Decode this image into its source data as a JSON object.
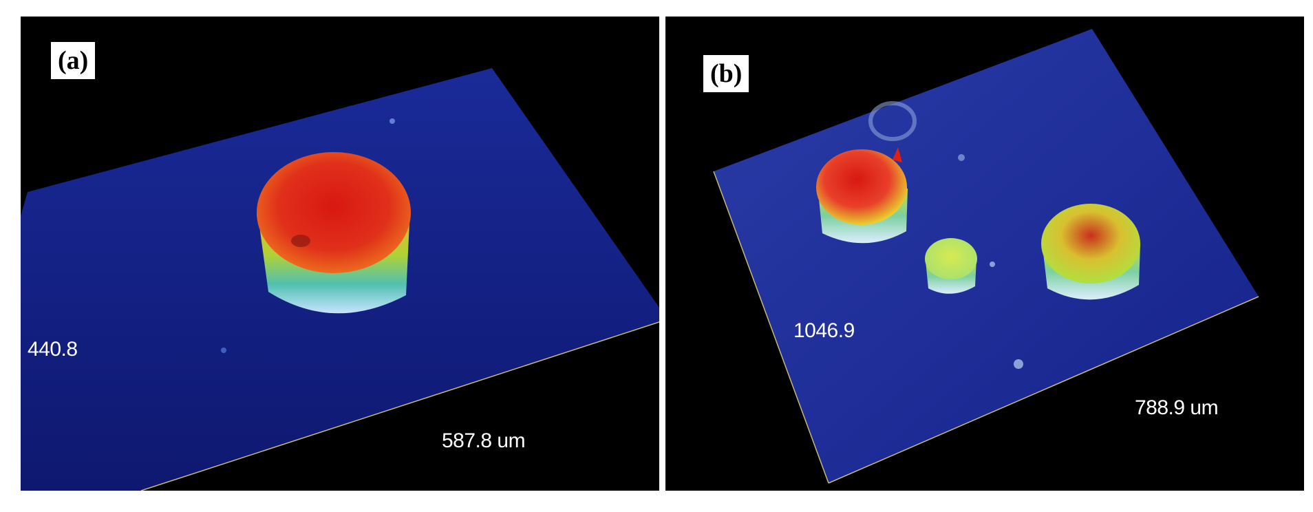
{
  "panels": [
    {
      "tag": "(a)",
      "axis_left": "440.8",
      "axis_bottom": "587.8 um"
    },
    {
      "tag": "(b)",
      "axis_left": "1046.9",
      "axis_bottom": "788.9 um"
    }
  ],
  "colors": {
    "background": "#000000",
    "surface": "#13208a",
    "peak": "#e01c10",
    "mid": "#e9e030",
    "edge": "#9fd0ff"
  }
}
